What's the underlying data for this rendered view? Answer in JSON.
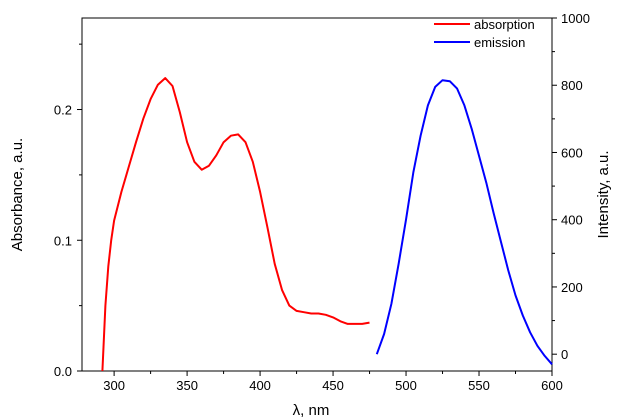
{
  "chart_data": {
    "type": "line",
    "title": "",
    "xlabel": "λ, nm",
    "ylabel_left": "Absorbance, a.u.",
    "ylabel_right": "Intensity, a.u.",
    "xlim": [
      278,
      600
    ],
    "ylim_left": [
      0,
      0.27
    ],
    "ylim_right": [
      -50,
      1000
    ],
    "x_ticks": [
      "300",
      "350",
      "400",
      "450",
      "500",
      "550",
      "600"
    ],
    "y_left_ticks": [
      "0.0",
      "0.1",
      "0.2"
    ],
    "y_right_ticks": [
      "0",
      "200",
      "400",
      "600",
      "800",
      "1000"
    ],
    "grid": false,
    "legend_position": "top-right",
    "series": [
      {
        "name": "absorption",
        "axis": "left",
        "color": "#ff0000",
        "x": [
          292,
          294,
          296,
          298,
          300,
          305,
          310,
          315,
          320,
          325,
          330,
          335,
          340,
          345,
          350,
          355,
          360,
          365,
          370,
          375,
          380,
          385,
          390,
          395,
          400,
          405,
          410,
          415,
          420,
          425,
          430,
          435,
          440,
          445,
          450,
          455,
          460,
          465,
          470,
          475
        ],
        "y": [
          0.0,
          0.05,
          0.08,
          0.1,
          0.115,
          0.137,
          0.156,
          0.175,
          0.193,
          0.208,
          0.219,
          0.224,
          0.218,
          0.198,
          0.175,
          0.16,
          0.154,
          0.157,
          0.165,
          0.175,
          0.18,
          0.181,
          0.175,
          0.16,
          0.137,
          0.11,
          0.082,
          0.062,
          0.05,
          0.046,
          0.045,
          0.044,
          0.044,
          0.043,
          0.041,
          0.038,
          0.036,
          0.036,
          0.036,
          0.037
        ]
      },
      {
        "name": "emission",
        "axis": "right",
        "color": "#0000ff",
        "x": [
          480,
          485,
          490,
          495,
          500,
          505,
          510,
          515,
          520,
          525,
          530,
          535,
          540,
          545,
          550,
          555,
          560,
          565,
          570,
          575,
          580,
          585,
          590,
          595,
          600
        ],
        "y": [
          0,
          60,
          150,
          270,
          400,
          540,
          650,
          740,
          795,
          815,
          812,
          790,
          740,
          670,
          590,
          510,
          420,
          335,
          250,
          175,
          115,
          65,
          25,
          -5,
          -30
        ]
      }
    ]
  }
}
